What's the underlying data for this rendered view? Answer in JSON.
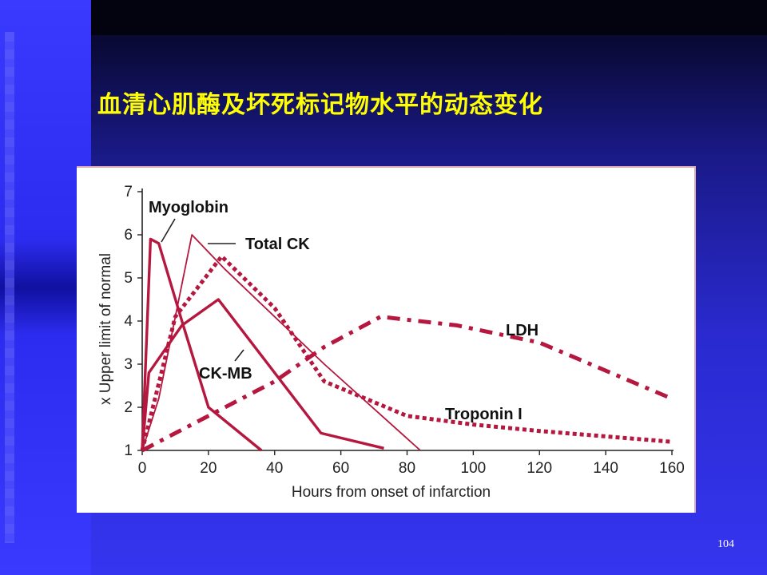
{
  "slide": {
    "title": "血清心肌酶及坏死标记物水平的动态变化",
    "page_number": "104"
  },
  "colors": {
    "curve": "#b5173f",
    "axis": "#222222",
    "title": "#ffff00"
  },
  "chart_data": {
    "type": "line",
    "title": "",
    "xlabel": "Hours from onset of infarction",
    "ylabel": "x Upper limit of normal",
    "xlim": [
      0,
      160
    ],
    "ylim": [
      1,
      7
    ],
    "xticks": [
      0,
      20,
      40,
      60,
      80,
      100,
      120,
      140,
      160
    ],
    "yticks": [
      1,
      2,
      3,
      4,
      5,
      6,
      7
    ],
    "grid": false,
    "legend": "labels placed next to curves",
    "series": [
      {
        "name": "Myoglobin",
        "style": "solid-thick",
        "x": [
          0,
          2.5,
          5,
          12,
          20,
          36
        ],
        "y": [
          1,
          5.9,
          5.8,
          4,
          2,
          1
        ]
      },
      {
        "name": "Total CK",
        "style": "solid-thin",
        "x": [
          0,
          5,
          15,
          25,
          55,
          84
        ],
        "y": [
          1,
          2.2,
          6,
          5.2,
          3,
          1
        ]
      },
      {
        "name": "CK-MB",
        "style": "solid-thick",
        "x": [
          0,
          2,
          12,
          23,
          54,
          73
        ],
        "y": [
          1,
          2.8,
          3.9,
          4.5,
          1.4,
          1.05
        ]
      },
      {
        "name": "Troponin I",
        "style": "dotted",
        "x": [
          0,
          10,
          24,
          40,
          55,
          80,
          100,
          120,
          160
        ],
        "y": [
          1,
          4.1,
          5.5,
          4.3,
          2.6,
          1.8,
          1.6,
          1.45,
          1.2
        ]
      },
      {
        "name": "LDH",
        "style": "dash-dot",
        "x": [
          0,
          10,
          40,
          55,
          72,
          95,
          120,
          160
        ],
        "y": [
          1,
          1.4,
          2.6,
          3.4,
          4.1,
          3.9,
          3.5,
          2.2
        ]
      }
    ]
  }
}
